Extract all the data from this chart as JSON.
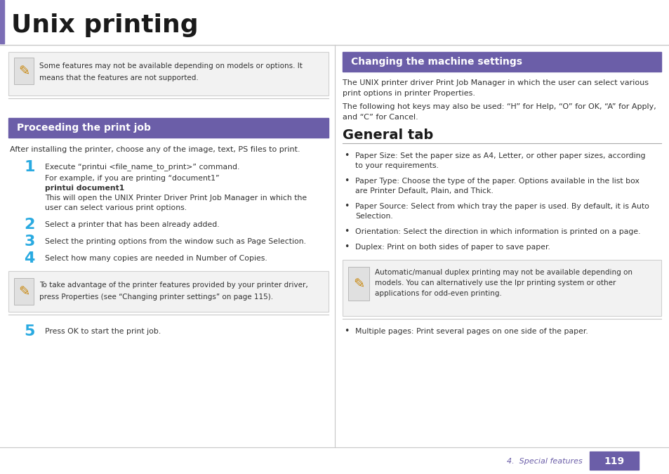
{
  "bg_color": "#ffffff",
  "title": "Unix printing",
  "title_color": "#1a1a1a",
  "left_bar_color": "#7b6db5",
  "header_line_color": "#c8c8c8",
  "section1_title": "Proceeding the print job",
  "section2_title": "Changing the machine settings",
  "section3_title": "General tab",
  "section_header_bg": "#6b5ea8",
  "section_header_text": "#ffffff",
  "note_bg": "#f2f2f2",
  "note_border": "#d0d0d0",
  "step_color": "#29aae1",
  "text_color": "#333333",
  "footer_label": "4.  Special features",
  "footer_page": "119",
  "footer_color": "#6b5ea8",
  "divider_color": "#c8c8c8"
}
